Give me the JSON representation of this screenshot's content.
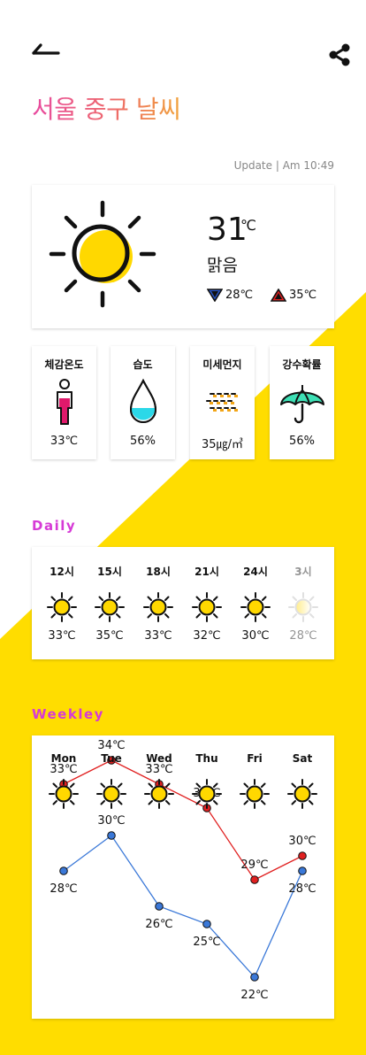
{
  "header": {
    "back_icon": "back-arrow-icon",
    "share_icon": "share-icon",
    "title": "서울 중구 날씨",
    "update_text": "Update | Am 10:49"
  },
  "current": {
    "icon": "sun-icon",
    "temperature": "31",
    "unit": "℃",
    "condition": "맑음",
    "low": "28℃",
    "high": "35℃"
  },
  "details": [
    {
      "title": "체감온도",
      "icon": "person-thermometer-icon",
      "value": "33℃"
    },
    {
      "title": "습도",
      "icon": "water-drop-icon",
      "value": "56%"
    },
    {
      "title": "미세먼지",
      "icon": "dust-icon",
      "value": "35㎍/㎥"
    },
    {
      "title": "강수확률",
      "icon": "umbrella-icon",
      "value": "56%"
    }
  ],
  "daily": {
    "label": "Daily",
    "items": [
      {
        "time": "12시",
        "temp": "33℃",
        "faded": false
      },
      {
        "time": "15시",
        "temp": "35℃",
        "faded": false
      },
      {
        "time": "18시",
        "temp": "33℃",
        "faded": false
      },
      {
        "time": "21시",
        "temp": "32℃",
        "faded": false
      },
      {
        "time": "24시",
        "temp": "30℃",
        "faded": false
      },
      {
        "time": "3시",
        "temp": "28℃",
        "faded": true
      }
    ]
  },
  "weekly": {
    "label": "Weekley",
    "days": [
      "Mon",
      "Tue",
      "Wed",
      "Thu",
      "Fri",
      "Sat"
    ],
    "highs": [
      33,
      34,
      33,
      32,
      29,
      30
    ],
    "lows": [
      28,
      30,
      26,
      25,
      22,
      28
    ],
    "high_labels": [
      "33℃",
      "34℃",
      "33℃",
      "32℃",
      "29℃",
      "30℃"
    ],
    "low_labels": [
      "28℃",
      "30℃",
      "26℃",
      "25℃",
      "22℃",
      "28℃"
    ],
    "high_color": "#e02020",
    "low_color": "#3a78d8"
  },
  "colors": {
    "accent_yellow": "#ffdd00",
    "sun_fill": "#ffd800",
    "section_label": "#d63ad6"
  }
}
